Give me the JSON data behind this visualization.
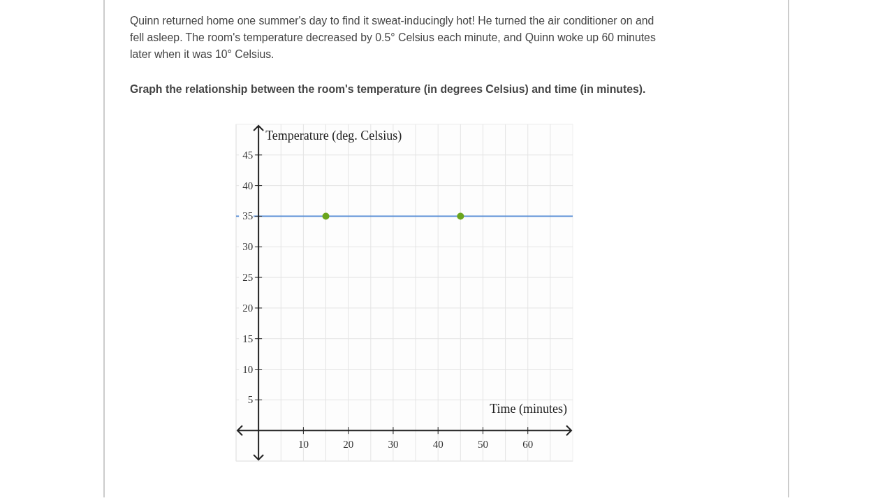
{
  "chart_data": {
    "type": "line",
    "title": "Quinn returned home one summer's day to find it sweat-inducingly hot! He turned the air conditioner on and fell asleep. The room's temperature decreased by 0.5° Celsius each minute, and Quinn woke up 60 minutes later when it was 10° Celsius.",
    "subtitle": "Graph the relationship between the room's temperature (in degrees Celsius) and time (in minutes).",
    "xlabel": "Time (minutes)",
    "ylabel": "Temperature (deg. Celsius)",
    "xlim": [
      -5,
      70
    ],
    "ylim": [
      -5,
      50
    ],
    "xticks": [
      {
        "value": -5,
        "label": null
      },
      {
        "value": 5,
        "label": null
      },
      10,
      {
        "value": 15,
        "label": null
      },
      20,
      {
        "value": 25,
        "label": null
      },
      30,
      {
        "value": 35,
        "label": null
      },
      40,
      {
        "value": 45,
        "label": null
      },
      50,
      {
        "value": 55,
        "label": null
      },
      60,
      {
        "value": 65,
        "label": null
      }
    ],
    "yticks": [
      {
        "value": -5,
        "label": null
      },
      5,
      10,
      15,
      20,
      25,
      30,
      35,
      40,
      45
    ],
    "grid": true,
    "series": [
      {
        "type": "line",
        "x": [
          -5,
          70
        ],
        "values": [
          35,
          35
        ],
        "color": "#5b8fd6",
        "marker": "none"
      },
      {
        "type": "scatter",
        "x": [
          15,
          45
        ],
        "values": [
          35,
          35
        ],
        "color": "#6aa51d",
        "marker": "circle"
      }
    ]
  }
}
